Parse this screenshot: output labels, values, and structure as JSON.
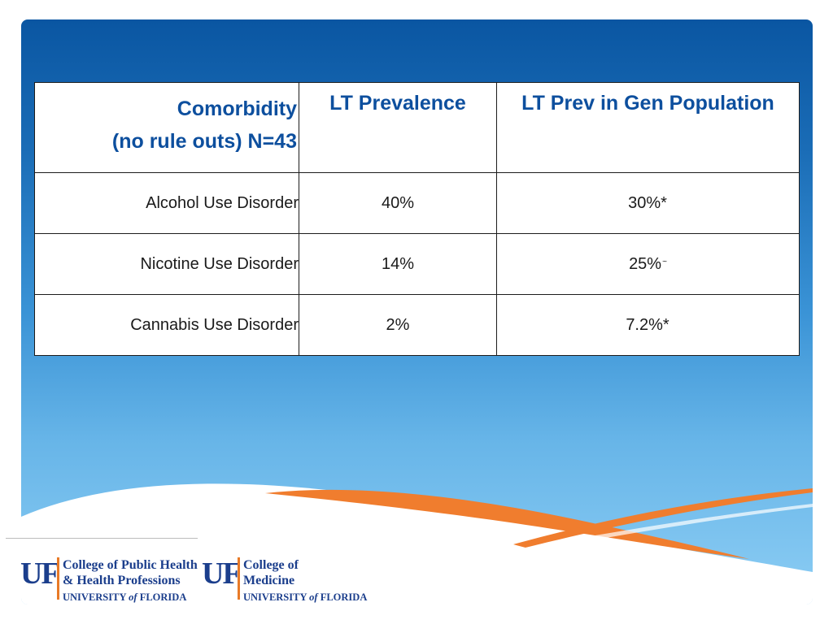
{
  "table": {
    "headers": {
      "col1_line1": "Comorbidity",
      "col1_line2": "(no rule outs) N=43",
      "col2": "LT Prevalence",
      "col3": "LT Prev in Gen Population"
    },
    "rows": [
      {
        "label": "Alcohol Use Disorder",
        "lt_prevalence": "40%",
        "gen_pop": "30%*",
        "gen_pop_mark": ""
      },
      {
        "label": "Nicotine Use Disorder",
        "lt_prevalence": "14%",
        "gen_pop": "25%",
        "gen_pop_mark": "~"
      },
      {
        "label": "Cannabis Use Disorder",
        "lt_prevalence": "2%",
        "gen_pop": "7.2%*",
        "gen_pop_mark": ""
      }
    ]
  },
  "logos": [
    {
      "mark": "UF",
      "line1": "College of Public Health",
      "line2": "& Health Professions",
      "university": "UNIVERSITY",
      "of": "of",
      "state": "FLORIDA"
    },
    {
      "mark": "UF",
      "line1": "College of",
      "line2": "Medicine",
      "university": "UNIVERSITY",
      "of": "of",
      "state": "FLORIDA"
    }
  ],
  "colors": {
    "header_text": "#0d4f9e",
    "swoosh_orange": "#f07d2e",
    "logo_blue": "#1b3e8c",
    "logo_orange": "#e87a27"
  }
}
